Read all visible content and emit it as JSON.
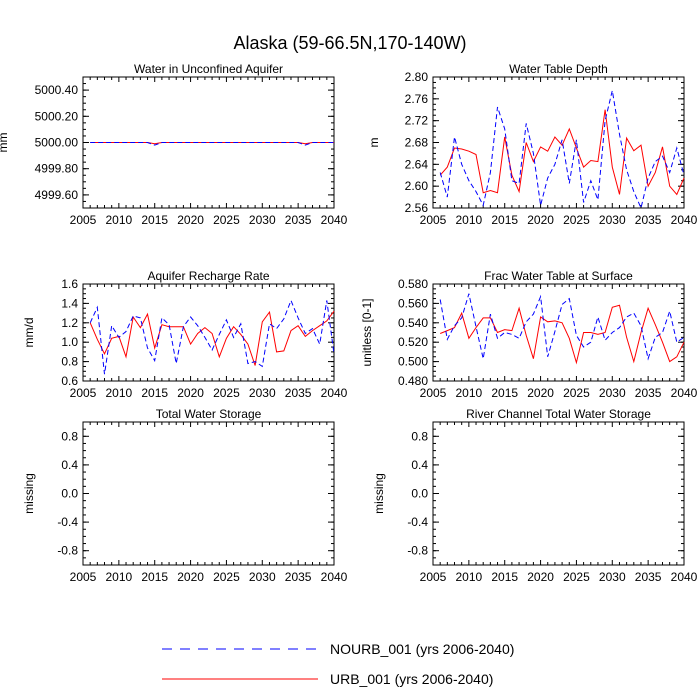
{
  "figure_title": "Alaska (59-66.5N,170-140W)",
  "legend": {
    "nourb": "NOURB_001 (yrs 2006-2040)",
    "urb": "URB_001 (yrs 2006-2040)"
  },
  "colors": {
    "urb": "#ff0000",
    "nourb": "#0000ff"
  },
  "chart_data": [
    {
      "id": "p1",
      "type": "line",
      "title": "Water in Unconfined Aquifer",
      "ylabel": "mm",
      "xlim": [
        2005,
        2040
      ],
      "ylim": [
        4999.5,
        5000.5
      ],
      "xticks": [
        2005,
        2010,
        2015,
        2020,
        2025,
        2030,
        2035,
        2040
      ],
      "yticks": [
        "4999.60",
        "4999.80",
        "5000.00",
        "5000.20",
        "5000.40"
      ],
      "ytick_values": [
        4999.6,
        4999.8,
        5000.0,
        5000.2,
        5000.4
      ],
      "x": [
        2006,
        2007,
        2008,
        2009,
        2010,
        2011,
        2012,
        2013,
        2014,
        2015,
        2016,
        2017,
        2018,
        2019,
        2020,
        2021,
        2022,
        2023,
        2024,
        2025,
        2026,
        2027,
        2028,
        2029,
        2030,
        2031,
        2032,
        2033,
        2034,
        2035,
        2036,
        2037,
        2038,
        2039,
        2040
      ],
      "series": [
        {
          "name": "URB_001",
          "values": [
            5000.0,
            5000.0,
            5000.0,
            5000.0,
            5000.0,
            5000.0,
            5000.0,
            5000.0,
            5000.0,
            4999.99,
            5000.0,
            5000.0,
            5000.0,
            5000.0,
            5000.0,
            5000.0,
            5000.0,
            5000.0,
            5000.0,
            5000.0,
            5000.0,
            5000.0,
            5000.0,
            5000.0,
            5000.0,
            5000.0,
            5000.0,
            5000.0,
            5000.0,
            5000.0,
            4999.99,
            5000.0,
            5000.0,
            5000.0,
            5000.0
          ]
        },
        {
          "name": "NOURB_001",
          "values": [
            5000.0,
            5000.0,
            5000.0,
            5000.0,
            5000.0,
            5000.0,
            5000.0,
            5000.0,
            5000.0,
            4999.98,
            5000.0,
            5000.0,
            5000.0,
            5000.0,
            5000.0,
            5000.0,
            5000.0,
            5000.0,
            5000.0,
            5000.0,
            5000.0,
            5000.0,
            5000.0,
            5000.0,
            5000.0,
            5000.0,
            5000.0,
            5000.0,
            5000.0,
            5000.0,
            4999.98,
            5000.0,
            5000.0,
            5000.0,
            5000.0
          ]
        }
      ]
    },
    {
      "id": "p2",
      "type": "line",
      "title": "Water Table Depth",
      "ylabel": "m",
      "xlim": [
        2005,
        2040
      ],
      "ylim": [
        2.56,
        2.8
      ],
      "xticks": [
        2005,
        2010,
        2015,
        2020,
        2025,
        2030,
        2035,
        2040
      ],
      "yticks": [
        "2.56",
        "2.60",
        "2.64",
        "2.68",
        "2.72",
        "2.76",
        "2.80"
      ],
      "ytick_values": [
        2.56,
        2.6,
        2.64,
        2.68,
        2.72,
        2.76,
        2.8
      ],
      "x": [
        2006,
        2007,
        2008,
        2009,
        2010,
        2011,
        2012,
        2013,
        2014,
        2015,
        2016,
        2017,
        2018,
        2019,
        2020,
        2021,
        2022,
        2023,
        2024,
        2025,
        2026,
        2027,
        2028,
        2029,
        2030,
        2031,
        2032,
        2033,
        2034,
        2035,
        2036,
        2037,
        2038,
        2039,
        2040
      ],
      "series": [
        {
          "name": "URB_001",
          "values": [
            2.62,
            2.635,
            2.67,
            2.668,
            2.664,
            2.658,
            2.588,
            2.592,
            2.588,
            2.69,
            2.62,
            2.59,
            2.68,
            2.645,
            2.672,
            2.664,
            2.69,
            2.675,
            2.705,
            2.67,
            2.635,
            2.647,
            2.645,
            2.74,
            2.635,
            2.585,
            2.688,
            2.665,
            2.675,
            2.6,
            2.625,
            2.672,
            2.6,
            2.585,
            2.615
          ]
        },
        {
          "name": "NOURB_001",
          "values": [
            2.625,
            2.58,
            2.69,
            2.64,
            2.61,
            2.59,
            2.565,
            2.625,
            2.745,
            2.705,
            2.61,
            2.605,
            2.715,
            2.66,
            2.565,
            2.615,
            2.64,
            2.685,
            2.605,
            2.685,
            2.57,
            2.61,
            2.575,
            2.72,
            2.775,
            2.695,
            2.63,
            2.59,
            2.56,
            2.615,
            2.645,
            2.655,
            2.625,
            2.67,
            2.62
          ]
        }
      ]
    },
    {
      "id": "p3",
      "type": "line",
      "title": "Aquifer Recharge Rate",
      "ylabel": "mm/d",
      "xlim": [
        2005,
        2040
      ],
      "ylim": [
        0.6,
        1.6
      ],
      "xticks": [
        2005,
        2010,
        2015,
        2020,
        2025,
        2030,
        2035,
        2040
      ],
      "yticks": [
        "0.6",
        "0.8",
        "1.0",
        "1.2",
        "1.4",
        "1.6"
      ],
      "ytick_values": [
        0.6,
        0.8,
        1.0,
        1.2,
        1.4,
        1.6
      ],
      "x": [
        2006,
        2007,
        2008,
        2009,
        2010,
        2011,
        2012,
        2013,
        2014,
        2015,
        2016,
        2017,
        2018,
        2019,
        2020,
        2021,
        2022,
        2023,
        2024,
        2025,
        2026,
        2027,
        2028,
        2029,
        2030,
        2031,
        2032,
        2033,
        2034,
        2035,
        2036,
        2037,
        2038,
        2039,
        2040
      ],
      "series": [
        {
          "name": "URB_001",
          "values": [
            1.2,
            1.03,
            0.88,
            1.04,
            1.06,
            0.85,
            1.26,
            1.15,
            1.29,
            0.94,
            1.18,
            1.16,
            1.16,
            1.16,
            0.98,
            1.09,
            1.15,
            1.09,
            0.85,
            1.04,
            1.16,
            1.08,
            0.98,
            0.76,
            1.21,
            1.31,
            0.9,
            0.91,
            1.12,
            1.17,
            1.06,
            1.12,
            1.17,
            1.22,
            1.32
          ]
        },
        {
          "name": "NOURB_001",
          "values": [
            1.2,
            1.36,
            0.67,
            1.17,
            1.05,
            1.11,
            1.27,
            1.25,
            0.94,
            0.81,
            1.25,
            1.18,
            0.78,
            1.16,
            1.26,
            1.17,
            1.05,
            0.92,
            1.08,
            1.23,
            1.05,
            1.19,
            0.78,
            0.8,
            0.75,
            1.19,
            1.14,
            1.24,
            1.43,
            1.25,
            1.09,
            1.14,
            0.98,
            1.43,
            0.88
          ]
        }
      ]
    },
    {
      "id": "p4",
      "type": "line",
      "title": "Frac Water Table at Surface",
      "ylabel": "unitless [0-1]",
      "xlim": [
        2005,
        2040
      ],
      "ylim": [
        0.48,
        0.58
      ],
      "xticks": [
        2005,
        2010,
        2015,
        2020,
        2025,
        2030,
        2035,
        2040
      ],
      "yticks": [
        "0.480",
        "0.500",
        "0.520",
        "0.540",
        "0.560",
        "0.580"
      ],
      "ytick_values": [
        0.48,
        0.5,
        0.52,
        0.54,
        0.56,
        0.58
      ],
      "x": [
        2006,
        2007,
        2008,
        2009,
        2010,
        2011,
        2012,
        2013,
        2014,
        2015,
        2016,
        2017,
        2018,
        2019,
        2020,
        2021,
        2022,
        2023,
        2024,
        2025,
        2026,
        2027,
        2028,
        2029,
        2030,
        2031,
        2032,
        2033,
        2034,
        2035,
        2036,
        2037,
        2038,
        2039,
        2040
      ],
      "series": [
        {
          "name": "URB_001",
          "values": [
            0.529,
            0.532,
            0.535,
            0.55,
            0.524,
            0.535,
            0.545,
            0.545,
            0.53,
            0.533,
            0.532,
            0.555,
            0.527,
            0.503,
            0.546,
            0.541,
            0.542,
            0.54,
            0.524,
            0.499,
            0.53,
            0.53,
            0.528,
            0.53,
            0.556,
            0.558,
            0.525,
            0.5,
            0.53,
            0.555,
            0.538,
            0.52,
            0.5,
            0.505,
            0.52
          ]
        },
        {
          "name": "NOURB_001",
          "values": [
            0.564,
            0.523,
            0.537,
            0.545,
            0.57,
            0.536,
            0.503,
            0.549,
            0.524,
            0.53,
            0.528,
            0.524,
            0.541,
            0.549,
            0.567,
            0.505,
            0.531,
            0.559,
            0.565,
            0.527,
            0.515,
            0.52,
            0.546,
            0.522,
            0.53,
            0.535,
            0.546,
            0.55,
            0.537,
            0.503,
            0.525,
            0.53,
            0.552,
            0.52,
            0.525
          ]
        }
      ]
    },
    {
      "id": "p5",
      "type": "line",
      "title": "Total Water Storage",
      "ylabel": "missing",
      "xlim": [
        2005,
        2040
      ],
      "ylim": [
        -1.0,
        1.0
      ],
      "xticks": [
        2005,
        2010,
        2015,
        2020,
        2025,
        2030,
        2035,
        2040
      ],
      "yticks": [
        "-0.8",
        "-0.4",
        "0.0",
        "0.4",
        "0.8"
      ],
      "ytick_values": [
        -0.8,
        -0.4,
        0.0,
        0.4,
        0.8
      ],
      "x": [],
      "series": []
    },
    {
      "id": "p6",
      "type": "line",
      "title": "River Channel Total Water Storage",
      "ylabel": "missing",
      "xlim": [
        2005,
        2040
      ],
      "ylim": [
        -1.0,
        1.0
      ],
      "xticks": [
        2005,
        2010,
        2015,
        2020,
        2025,
        2030,
        2035,
        2040
      ],
      "yticks": [
        "-0.8",
        "-0.4",
        "0.0",
        "0.4",
        "0.8"
      ],
      "ytick_values": [
        -0.8,
        -0.4,
        0.0,
        0.4,
        0.8
      ],
      "x": [],
      "series": []
    }
  ]
}
